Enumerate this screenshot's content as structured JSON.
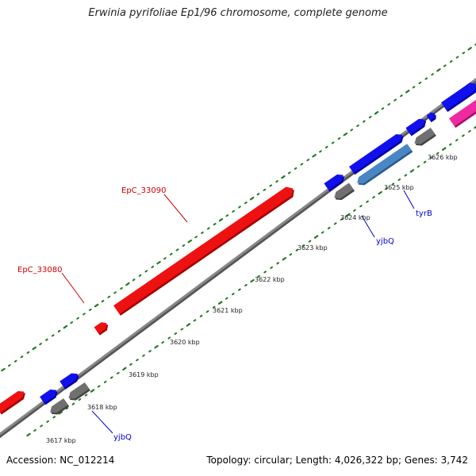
{
  "title": "Erwinia pyrifoliae Ep1/96 chromosome, complete genome",
  "accession_text": "Accession: NC_012214",
  "topology_text": "Topology: circular; Length: 4,026,322 bp; Genes: 3,742",
  "colors": {
    "backbone": "#888888",
    "backbone_dark": "#555555",
    "tick": "#1e7a1e",
    "gene_red": "#ee1111",
    "gene_red_dark": "#a00000",
    "gene_blue": "#1010ee",
    "gene_blue_dark": "#0000a0",
    "gene_steel": "#4a86c4",
    "gene_steel_dark": "#2a5a8a",
    "gene_gray": "#707070",
    "gene_gray_dark": "#444444",
    "gene_pink": "#ee2aa0",
    "gene_pink_dark": "#a01060",
    "label_red": "#cc0000",
    "label_blue": "#0000cc"
  },
  "scale": {
    "tick_labels": [
      "3617 kbp",
      "3618 kbp",
      "3619 kbp",
      "3620 kbp",
      "3621 kbp",
      "3622 kbp",
      "3623 kbp",
      "3624 kbp",
      "3625 kbp",
      "3626 kbp"
    ]
  },
  "features": [
    {
      "id": "f1",
      "label": "",
      "color": "gene_red"
    },
    {
      "id": "f2",
      "label": "EpC_33080",
      "color": "gene_red"
    },
    {
      "id": "f3",
      "label": "EpC_33090",
      "color": "gene_red"
    },
    {
      "id": "f4",
      "label": "",
      "color": "gene_blue"
    },
    {
      "id": "f5",
      "label": "",
      "color": "gene_blue"
    },
    {
      "id": "f6",
      "label": "yjbQ",
      "color": "gene_gray"
    },
    {
      "id": "f7",
      "label": "",
      "color": "gene_blue"
    },
    {
      "id": "f8",
      "label": "",
      "color": "gene_blue"
    },
    {
      "id": "f9",
      "label": "yjbQ",
      "color": "gene_gray"
    },
    {
      "id": "f10",
      "label": "tyrB",
      "color": "gene_steel"
    },
    {
      "id": "f11",
      "label": "",
      "color": "gene_blue"
    },
    {
      "id": "f12",
      "label": "",
      "color": "gene_gray"
    },
    {
      "id": "f13",
      "label": "",
      "color": "gene_blue"
    },
    {
      "id": "f14",
      "label": "",
      "color": "gene_blue"
    },
    {
      "id": "f15",
      "label": "",
      "color": "gene_pink"
    }
  ]
}
